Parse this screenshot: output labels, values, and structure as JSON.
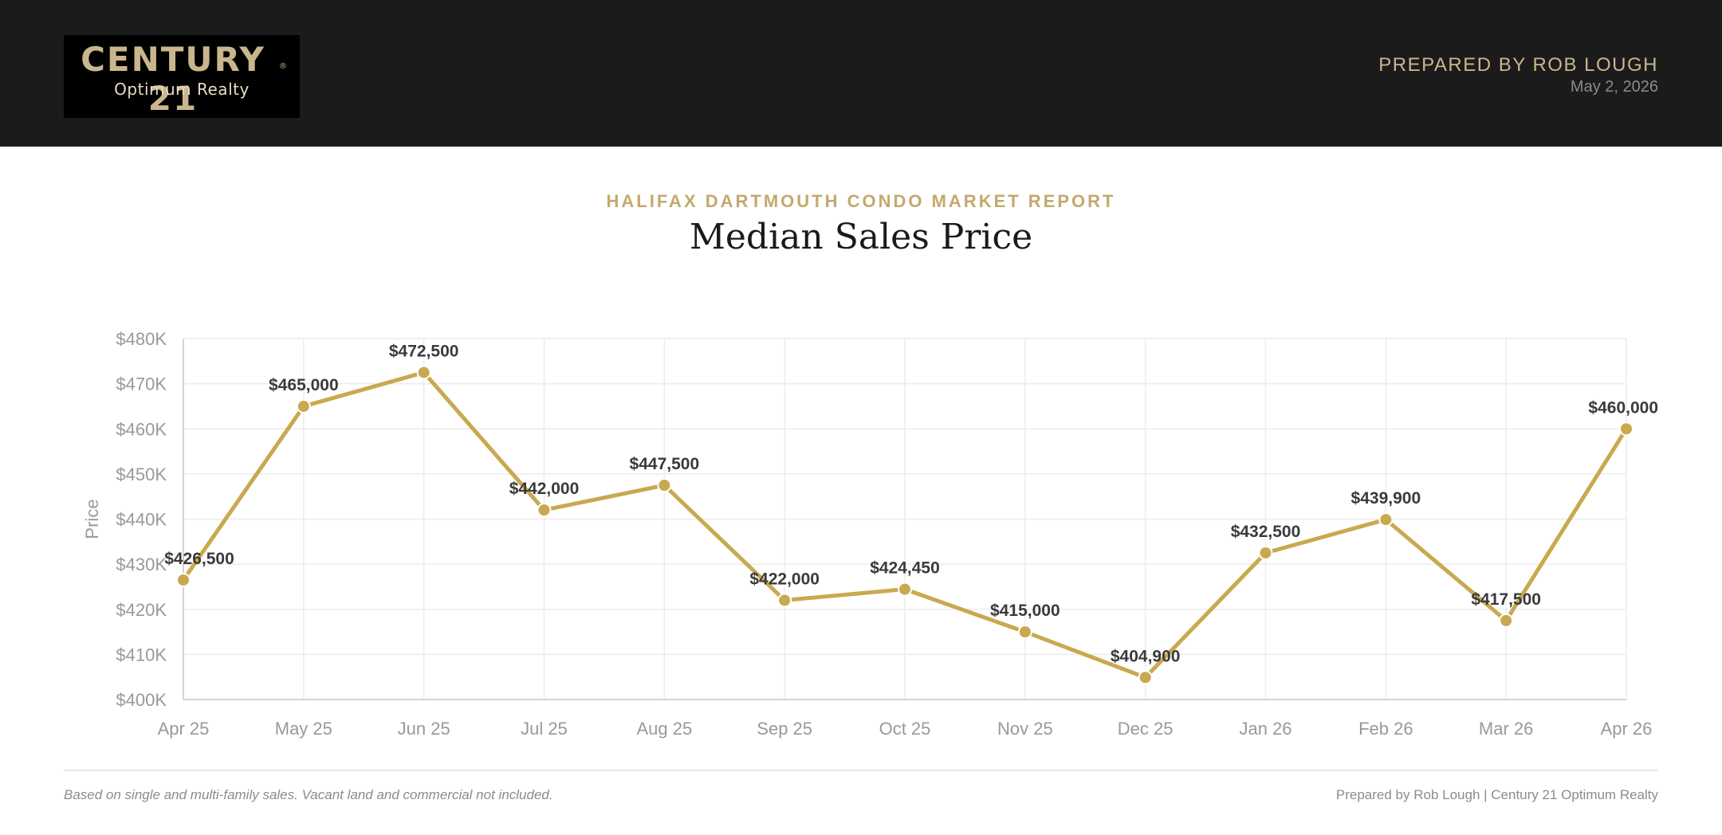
{
  "header": {
    "logo_line1": "CENTURY 21",
    "logo_mark": "®",
    "logo_line2": "Optimum Realty",
    "prepared_by": "PREPARED BY ROB LOUGH",
    "date": "May 2, 2026"
  },
  "report": {
    "subtitle": "HALIFAX DARTMOUTH CONDO MARKET REPORT",
    "title": "Median Sales Price"
  },
  "chart_data": {
    "type": "line",
    "title": "Median Sales Price",
    "subtitle": "HALIFAX DARTMOUTH CONDO MARKET REPORT",
    "xlabel": "",
    "ylabel": "Price",
    "categories": [
      "Apr 25",
      "May 25",
      "Jun 25",
      "Jul 25",
      "Aug 25",
      "Sep 25",
      "Oct 25",
      "Nov 25",
      "Dec 25",
      "Jan 26",
      "Feb 26",
      "Mar 26",
      "Apr 26"
    ],
    "values": [
      426500,
      465000,
      472500,
      442000,
      447500,
      422000,
      424450,
      415000,
      404900,
      432500,
      439900,
      417500,
      460000
    ],
    "data_labels": [
      "$426,500",
      "$465,000",
      "$472,500",
      "$442,000",
      "$447,500",
      "$422,000",
      "$424,450",
      "$415,000",
      "$404,900",
      "$432,500",
      "$439,900",
      "$417,500",
      "$460,000"
    ],
    "ylim": [
      400000,
      480000
    ],
    "yticks": [
      400000,
      410000,
      420000,
      430000,
      440000,
      450000,
      460000,
      470000,
      480000
    ],
    "ytick_labels": [
      "$400K",
      "$410K",
      "$420K",
      "$430K",
      "$440K",
      "$450K",
      "$460K",
      "$470K",
      "$480K"
    ],
    "grid": true,
    "legend": "none",
    "colors": {
      "line": "#c9a94f",
      "grid": "#ececec",
      "tick_text": "#999999",
      "label_text": "#3a3a3a"
    }
  },
  "footer": {
    "note": "Based on single and multi-family sales. Vacant land and commercial not included.",
    "credit": "Prepared by Rob Lough | Century 21 Optimum Realty"
  }
}
